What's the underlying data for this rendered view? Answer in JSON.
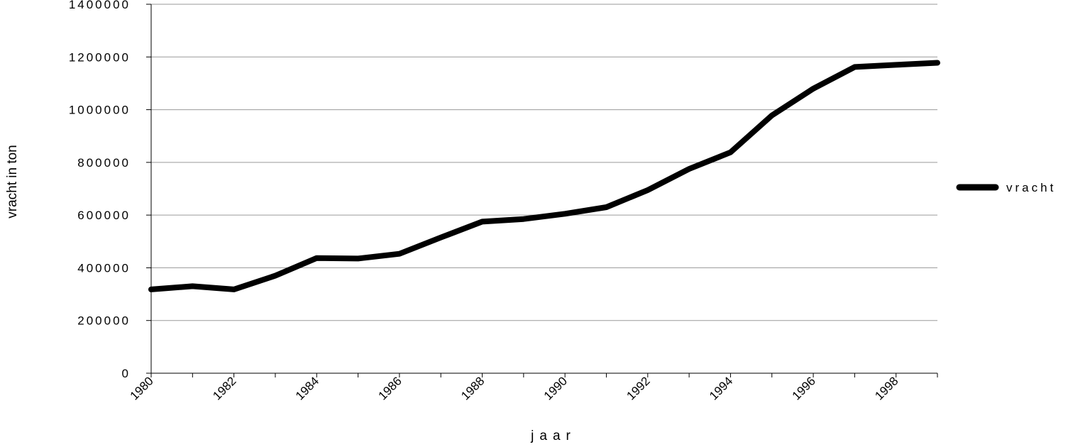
{
  "chart_data": {
    "type": "line",
    "xlabel": "jaar",
    "ylabel": "vracht in ton",
    "ylim": [
      0,
      1400000
    ],
    "xlim": [
      1980,
      1999
    ],
    "y_ticks": [
      "0",
      "200000",
      "400000",
      "600000",
      "800000",
      "1000000",
      "1200000",
      "1400000"
    ],
    "x_ticks": [
      "1980",
      "1982",
      "1984",
      "1986",
      "1988",
      "1990",
      "1992",
      "1994",
      "1996",
      "1998"
    ],
    "grid": "horizontal",
    "legend_position": "right",
    "line_color": "#000000",
    "x": [
      1980,
      1981,
      1982,
      1983,
      1984,
      1985,
      1986,
      1987,
      1988,
      1989,
      1990,
      1991,
      1992,
      1993,
      1994,
      1995,
      1996,
      1997,
      1998,
      1999
    ],
    "series": [
      {
        "name": "vracht",
        "values": [
          318000,
          330000,
          318000,
          370000,
          437000,
          435000,
          453000,
          515000,
          575000,
          585000,
          605000,
          630000,
          695000,
          775000,
          838000,
          978000,
          1080000,
          1162000,
          1170000,
          1178000
        ]
      }
    ]
  }
}
